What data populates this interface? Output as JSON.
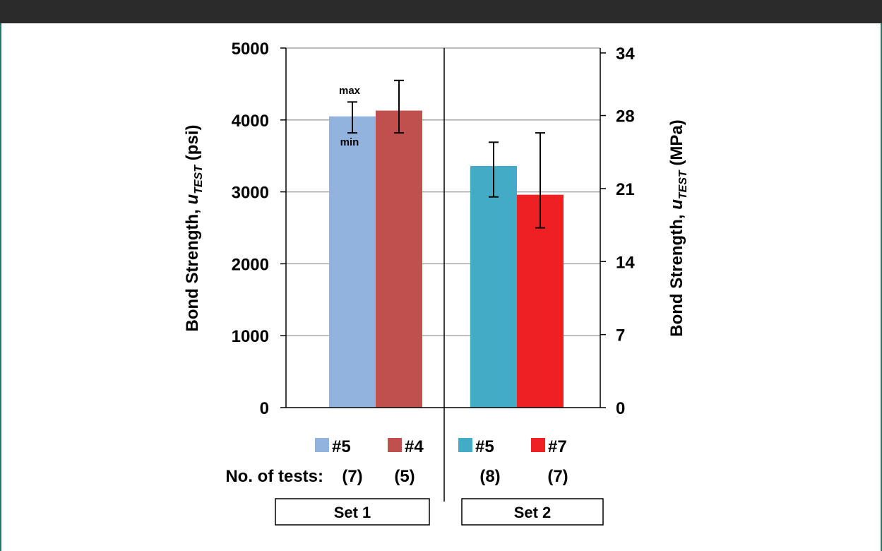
{
  "chart_data": {
    "type": "bar",
    "left_axis": {
      "title_prefix": "Bond Strength, ",
      "title_var": "u",
      "title_sub": "TEST",
      "title_unit": " (psi)",
      "ylim": [
        0,
        5000
      ],
      "ticks": [
        "0",
        "1000",
        "2000",
        "3000",
        "4000",
        "5000"
      ],
      "tick_values": [
        0,
        1000,
        2000,
        3000,
        4000,
        5000
      ]
    },
    "right_axis": {
      "title_prefix": "Bond Strength, ",
      "title_var": "u",
      "title_sub": "TEST",
      "title_unit": " (MPa)",
      "ylim": [
        0,
        34.47
      ],
      "ticks": [
        "0",
        "7",
        "14",
        "21",
        "28",
        "34"
      ],
      "tick_values": [
        0,
        7,
        14,
        21,
        28,
        34
      ]
    },
    "grid": true,
    "bars": [
      {
        "label": "#5",
        "tests": "(7)",
        "set": 0,
        "value": 4050,
        "min": 3820,
        "max": 4250,
        "color": "#93b3df"
      },
      {
        "label": "#4",
        "tests": "(5)",
        "set": 0,
        "value": 4130,
        "min": 3820,
        "max": 4550,
        "color": "#c0504d"
      },
      {
        "label": "#5",
        "tests": "(8)",
        "set": 1,
        "value": 3360,
        "min": 2930,
        "max": 3690,
        "color": "#43abc6"
      },
      {
        "label": "#7",
        "tests": "(7)",
        "set": 1,
        "value": 2960,
        "min": 2500,
        "max": 3820,
        "color": "#ee2024"
      }
    ],
    "annotations": {
      "max": "max",
      "min": "min"
    },
    "tests_label": "No. of tests:",
    "sets": [
      "Set 1",
      "Set 2"
    ]
  }
}
